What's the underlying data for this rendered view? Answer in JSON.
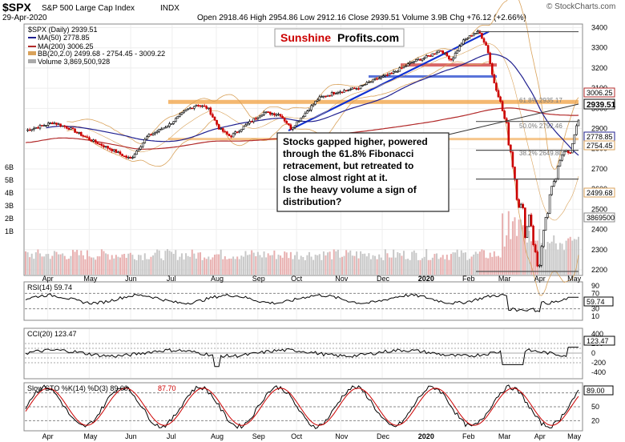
{
  "header": {
    "symbol": "$SPX",
    "index_name": "S&P 500 Large Cap Index",
    "exchange": "INDX",
    "date": "29-Apr-2020",
    "ohlc_text": "Open 2918.46  High 2954.86  Low 2912.16  Close 2939.51  Volume 3.9B  Chg +76.12 (+2.66%)",
    "credit": "© StockCharts.com"
  },
  "logo": {
    "part1": "Sunshine",
    "part2": "Profits.com"
  },
  "legend": {
    "spx": "$SPX (Daily) 2939.51",
    "ma50": "MA(50) 2778.85",
    "ma200": "MA(200) 3006.25",
    "bb": "BB(20,2.0) 2499.68 - 2754.45 - 3009.22",
    "volume": "Volume 3,869,500,928"
  },
  "annotation": {
    "lines": [
      "Stocks gapped higher, powered",
      "through the 61.8% Fibonacci",
      "retracement, but retreated to",
      "close almost right at it.",
      "Is the heavy volume a sign of",
      "distribution?"
    ]
  },
  "fib_labels": {
    "f618": "61.8% 2935.17",
    "f50": "50.0% 2792.46",
    "f382": "38.2% 2649.80"
  },
  "price_badges": {
    "ma200": "3006.25",
    "close": "2939.51",
    "ma50": "2778.85",
    "bb_mid": "2754.45",
    "bb_low": "2499.68",
    "vol": "3869500"
  },
  "months": [
    "Apr",
    "May",
    "Jun",
    "Jul",
    "Aug",
    "Sep",
    "Oct",
    "Nov",
    "Dec",
    "2020",
    "Feb",
    "Mar",
    "Apr",
    "May"
  ],
  "price_axis": [
    "3400",
    "3300",
    "3200",
    "3100",
    "3000",
    "2900",
    "2800",
    "2700",
    "2600",
    "2500",
    "2400",
    "2300",
    "2200"
  ],
  "volume_axis": [
    "6B",
    "5B",
    "4B",
    "3B",
    "2B",
    "1B"
  ],
  "rsi": {
    "label": "RSI(14) 59.74",
    "badge": "59.74",
    "ticks": [
      "90",
      "70",
      "50",
      "30",
      "10"
    ]
  },
  "cci": {
    "label": "CCI(20) 123.47",
    "badge": "123.47",
    "ticks": [
      "400",
      "200",
      "0",
      "-200",
      "-400"
    ]
  },
  "sto": {
    "label_main": "Slow STO %K(14) %D(3) 89.00,",
    "label_red": "87.70",
    "badge": "89.00",
    "ticks": [
      "80",
      "50",
      "20"
    ]
  },
  "colors": {
    "up": "#000000",
    "down": "#cc0000",
    "ma50": "#1f1f8f",
    "ma200": "#b22a2a",
    "bb": "#d9a25a",
    "fib": "#555555",
    "blue_trend": "#1030d0",
    "orange_zone": "#f0a040",
    "volume_fill": "#e8b0b0",
    "logo_red": "#cc0000"
  },
  "chart_data": {
    "type": "line",
    "title": "$SPX S&P 500 Large Cap Index",
    "x_axis_months": [
      "Apr",
      "May",
      "Jun",
      "Jul",
      "Aug",
      "Sep",
      "Oct",
      "Nov",
      "Dec",
      "2020",
      "Feb",
      "Mar",
      "Apr",
      "May"
    ],
    "ylim": [
      2180,
      3410
    ],
    "series": [
      {
        "name": "$SPX (Daily)",
        "x": [
          "Apr",
          "May",
          "Jun",
          "Jul",
          "Aug",
          "Sep",
          "Oct",
          "Nov",
          "Dec",
          "2020",
          "Feb",
          "Mar",
          "Apr",
          "May"
        ],
        "values": [
          2890,
          2870,
          2800,
          2980,
          2900,
          2980,
          2970,
          3060,
          3140,
          3240,
          3380,
          3000,
          2480,
          2939.51
        ]
      },
      {
        "name": "MA(50)",
        "last": 2778.85
      },
      {
        "name": "MA(200)",
        "last": 3006.25
      },
      {
        "name": "BB(20,2.0)",
        "low": 2499.68,
        "mid": 2754.45,
        "high": 3009.22
      }
    ],
    "fibonacci": [
      {
        "level": "61.8%",
        "value": 2935.17
      },
      {
        "level": "50.0%",
        "value": 2792.46
      },
      {
        "level": "38.2%",
        "value": 2649.8
      }
    ],
    "volume_last": 3869500928,
    "rsi_last": 59.74,
    "cci_last": 123.47,
    "slow_sto_k": 89.0,
    "slow_sto_d": 87.7
  }
}
